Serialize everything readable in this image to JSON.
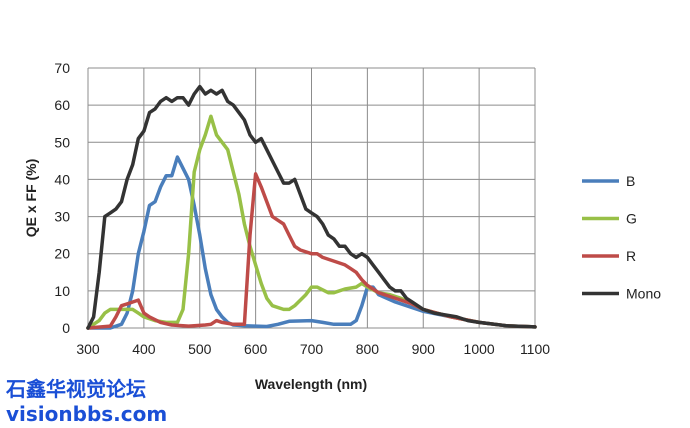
{
  "chart_data": {
    "type": "line",
    "title": "",
    "xlabel": "Wavelength (nm)",
    "ylabel": "QE x FF (%)",
    "xlim": [
      300,
      1100
    ],
    "ylim": [
      0,
      70
    ],
    "xticks": [
      300,
      400,
      500,
      600,
      700,
      800,
      900,
      1000,
      1100
    ],
    "yticks": [
      0,
      10,
      20,
      30,
      40,
      50,
      60,
      70
    ],
    "grid": true,
    "legend_position": "right",
    "series": [
      {
        "name": "B",
        "color": "#4a7ebb",
        "x": [
          300,
          340,
          360,
          370,
          380,
          390,
          400,
          410,
          420,
          430,
          440,
          450,
          460,
          470,
          480,
          490,
          500,
          510,
          520,
          530,
          540,
          550,
          560,
          580,
          600,
          620,
          640,
          660,
          700,
          720,
          740,
          770,
          780,
          790,
          800,
          810,
          820,
          850,
          900,
          950,
          1000,
          1050,
          1100
        ],
        "y": [
          0,
          0,
          1,
          4,
          10,
          20,
          26,
          33,
          34,
          38,
          41,
          41,
          46,
          43,
          40,
          33,
          25,
          16,
          9,
          5,
          3,
          1.5,
          0.8,
          0.6,
          0.5,
          0.4,
          1,
          1.8,
          2,
          1.5,
          1,
          1,
          2,
          6,
          11,
          11,
          9,
          7,
          4.5,
          3,
          1.5,
          0.6,
          0.3
        ]
      },
      {
        "name": "G",
        "color": "#98c047",
        "x": [
          300,
          320,
          330,
          340,
          360,
          380,
          390,
          400,
          420,
          440,
          460,
          470,
          480,
          490,
          500,
          510,
          520,
          530,
          540,
          550,
          560,
          570,
          580,
          590,
          600,
          610,
          620,
          630,
          650,
          660,
          670,
          690,
          700,
          710,
          730,
          740,
          760,
          780,
          790,
          800,
          820,
          840,
          860,
          880,
          900,
          950,
          1000,
          1050,
          1100
        ],
        "y": [
          0,
          2,
          4,
          5,
          5,
          5,
          4,
          3,
          2,
          1.5,
          1.5,
          5,
          20,
          42,
          48,
          52,
          57,
          52,
          50,
          48,
          42,
          36,
          28,
          22,
          17,
          12,
          8,
          6,
          5,
          5,
          6,
          9,
          11,
          11,
          9.5,
          9.5,
          10.5,
          11,
          12,
          11,
          9.5,
          9,
          8,
          6.5,
          5,
          3,
          1.5,
          0.6,
          0.3
        ]
      },
      {
        "name": "R",
        "color": "#be4b48",
        "x": [
          300,
          340,
          350,
          360,
          370,
          380,
          390,
          400,
          410,
          430,
          450,
          480,
          510,
          520,
          530,
          540,
          560,
          580,
          590,
          600,
          610,
          620,
          630,
          640,
          650,
          660,
          670,
          680,
          700,
          710,
          720,
          740,
          760,
          770,
          780,
          790,
          800,
          820,
          840,
          880,
          900,
          950,
          1000,
          1050,
          1100
        ],
        "y": [
          0,
          0.5,
          3,
          6,
          6.5,
          7,
          7.5,
          4,
          3,
          1.5,
          0.8,
          0.5,
          0.8,
          1,
          2,
          1.5,
          1,
          1,
          25,
          41.5,
          38,
          34,
          30,
          29,
          28,
          25,
          22,
          21,
          20,
          20,
          19,
          18,
          17,
          16,
          15,
          13,
          11.5,
          9.5,
          8.5,
          6.5,
          5,
          3,
          1.5,
          0.6,
          0.3
        ]
      },
      {
        "name": "Mono",
        "color": "#333333",
        "x": [
          300,
          310,
          320,
          330,
          340,
          350,
          360,
          370,
          380,
          390,
          400,
          410,
          420,
          430,
          440,
          450,
          460,
          470,
          480,
          490,
          500,
          510,
          520,
          530,
          540,
          550,
          560,
          570,
          580,
          590,
          600,
          610,
          620,
          630,
          640,
          650,
          660,
          670,
          680,
          690,
          700,
          710,
          720,
          730,
          740,
          750,
          760,
          770,
          780,
          790,
          800,
          810,
          820,
          830,
          840,
          850,
          860,
          870,
          880,
          900,
          920,
          940,
          960,
          980,
          1000,
          1050,
          1100
        ],
        "y": [
          0,
          3,
          15,
          30,
          31,
          32,
          34,
          40,
          44,
          51,
          53,
          58,
          59,
          61,
          62,
          61,
          62,
          62,
          60,
          63,
          65,
          63,
          64,
          63,
          64,
          61,
          60,
          58,
          56,
          52,
          50,
          51,
          48,
          45,
          42,
          39,
          39,
          40,
          36,
          32,
          31,
          30,
          28,
          25,
          24,
          22,
          22,
          20,
          19,
          20,
          19,
          17,
          15,
          13,
          11,
          10,
          10,
          8,
          7,
          5,
          4,
          3.5,
          3,
          2,
          1.5,
          0.6,
          0.3
        ]
      }
    ]
  },
  "watermark": {
    "line1": "石鑫华视觉论坛",
    "line2": "visionbbs.com"
  }
}
